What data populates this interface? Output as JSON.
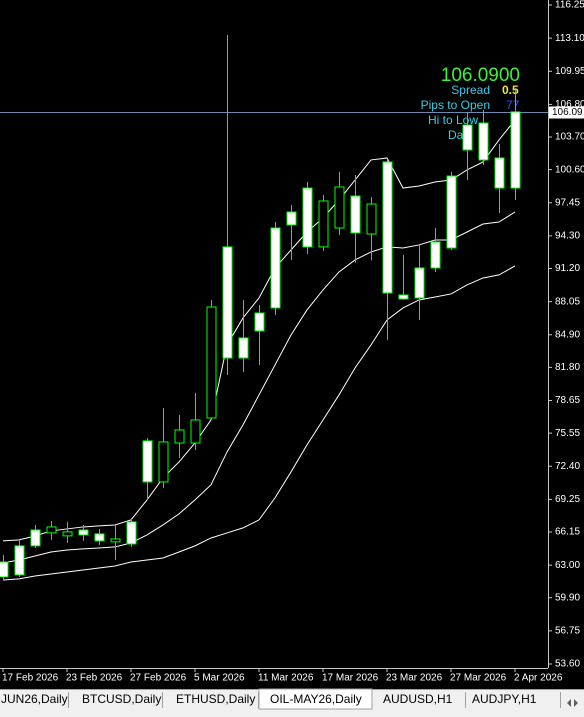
{
  "chart_data": {
    "type": "candlestick",
    "categories": [
      "17 Feb 2026",
      null,
      null,
      null,
      "23 Feb 2026",
      null,
      null,
      null,
      "27 Feb 2026",
      null,
      null,
      null,
      "5 Mar 2026",
      null,
      null,
      null,
      "11 Mar 2026",
      null,
      null,
      null,
      "17 Mar 2026",
      null,
      null,
      null,
      "23 Mar 2026",
      null,
      null,
      null,
      "27 Mar 2026",
      null,
      null,
      null,
      "2 Apr 2026"
    ],
    "open": [
      61.88,
      62.07,
      64.83,
      66.63,
      66.16,
      65.87,
      65.3,
      65.49,
      65.01,
      70.91,
      74.71,
      75.85,
      76.8,
      87.54,
      82.69,
      82.69,
      85.26,
      87.45,
      95.34,
      93.25,
      97.62,
      98.95,
      94.58,
      97.33,
      88.87,
      88.3,
      88.4,
      91.25,
      93.15,
      102.47,
      101.52,
      98.85,
      98.85
    ],
    "high": [
      63.97,
      65.4,
      66.82,
      67.2,
      67.11,
      66.82,
      66.44,
      66.82,
      67.49,
      75.09,
      77.94,
      77.28,
      79.37,
      88.21,
      113.4,
      88.21,
      87.73,
      95.62,
      97.24,
      99.42,
      98.19,
      100.38,
      100.09,
      97.99,
      101.52,
      92.49,
      93.44,
      95.05,
      100.38,
      106.08,
      106.27,
      103.04,
      108.36
    ],
    "low": [
      61.59,
      61.88,
      64.63,
      65.4,
      65.11,
      65.3,
      64.92,
      63.49,
      64.73,
      69.2,
      70.34,
      73.19,
      73.95,
      76.8,
      81.08,
      81.36,
      82.03,
      86.78,
      92.01,
      92.58,
      92.87,
      94.39,
      91.73,
      91.97,
      84.41,
      88.21,
      86.31,
      90.87,
      92.96,
      99.61,
      101.04,
      96.48,
      97.71
    ],
    "close": [
      63.3,
      64.83,
      66.34,
      66.06,
      65.78,
      66.34,
      65.97,
      65.21,
      67.11,
      74.81,
      70.91,
      74.61,
      74.61,
      76.99,
      93.25,
      84.6,
      86.97,
      95.05,
      96.57,
      98.85,
      93.25,
      95.05,
      98.09,
      94.48,
      101.33,
      88.68,
      91.25,
      93.72,
      99.99,
      104.84,
      105.03,
      101.71,
      106.09
    ],
    "bull_color": "#ffffff",
    "bear_color": "#000000",
    "wick_color": "#00ff00",
    "bands": [
      {
        "color": "#ffffff",
        "values": [
          65.3,
          65.4,
          65.77,
          66.25,
          66.44,
          66.63,
          66.73,
          66.82,
          67.3,
          69.2,
          71.29,
          72.81,
          74.61,
          76.8,
          83.93,
          86.5,
          88.4,
          91.25,
          92.96,
          94.67,
          96.0,
          97.71,
          99.61,
          101.52,
          101.71,
          98.85,
          99.04,
          99.42,
          99.61,
          100.57,
          101.33,
          103.42,
          105.32
        ]
      },
      {
        "color": "#ffffff",
        "values": [
          63.21,
          63.49,
          63.87,
          64.25,
          64.44,
          64.54,
          64.63,
          64.73,
          65.11,
          65.87,
          66.82,
          67.87,
          69.2,
          70.63,
          73.76,
          76.33,
          79.18,
          82.03,
          84.88,
          87.26,
          89.16,
          90.87,
          92.01,
          92.77,
          93.25,
          93.15,
          93.44,
          93.91,
          93.91,
          94.67,
          95.43,
          95.62,
          96.57
        ]
      },
      {
        "color": "#ffffff",
        "values": [
          61.59,
          61.69,
          61.97,
          62.16,
          62.35,
          62.54,
          62.73,
          62.92,
          63.3,
          63.49,
          63.68,
          64.25,
          64.83,
          65.58,
          66.06,
          66.54,
          67.3,
          69.39,
          71.86,
          74.43,
          76.8,
          79.18,
          81.74,
          83.93,
          86.31,
          87.45,
          88.21,
          88.49,
          88.78,
          89.64,
          90.3,
          90.59,
          91.44
        ]
      }
    ],
    "ylim": [
      53.6,
      116.25
    ],
    "yticks": [
      {
        "value": 116.25,
        "label": "116.25"
      },
      {
        "value": 113.1,
        "label": "113.10"
      },
      {
        "value": 109.95,
        "label": "109.95"
      },
      {
        "value": 106.8,
        "label": "106.80"
      },
      {
        "value": 103.7,
        "label": "103.70"
      },
      {
        "value": 100.6,
        "label": "100.60"
      },
      {
        "value": 97.45,
        "label": "97.45"
      },
      {
        "value": 94.3,
        "label": "94.30"
      },
      {
        "value": 91.2,
        "label": "91.20"
      },
      {
        "value": 88.05,
        "label": "88.05"
      },
      {
        "value": 84.9,
        "label": "84.90"
      },
      {
        "value": 81.8,
        "label": "81.80"
      },
      {
        "value": 78.65,
        "label": "78.65"
      },
      {
        "value": 75.55,
        "label": "75.55"
      },
      {
        "value": 72.4,
        "label": "72.40"
      },
      {
        "value": 69.25,
        "label": "69.25"
      },
      {
        "value": 66.15,
        "label": "66.15"
      },
      {
        "value": 63.0,
        "label": "63.00"
      },
      {
        "value": 59.9,
        "label": "59.90"
      },
      {
        "value": 56.75,
        "label": "56.75"
      },
      {
        "value": 53.6,
        "label": "53.60"
      }
    ],
    "current_price": 106.09,
    "current_price_color": "#6a8cb0",
    "info": {
      "price": "106.0900",
      "spread_label": "Spread",
      "spread": 0.5,
      "pips_label": "Pips to Open",
      "pips": 77,
      "hi_low_label": "Hi to Low",
      "days_label": "Da"
    }
  },
  "tabs": [
    "JUN26,Daily",
    "BTCUSD,Daily",
    "ETHUSD,Daily",
    "OIL-MAY26,Daily",
    "AUDUSD,H1",
    "AUDJPY,H1"
  ],
  "active_tab": 3
}
